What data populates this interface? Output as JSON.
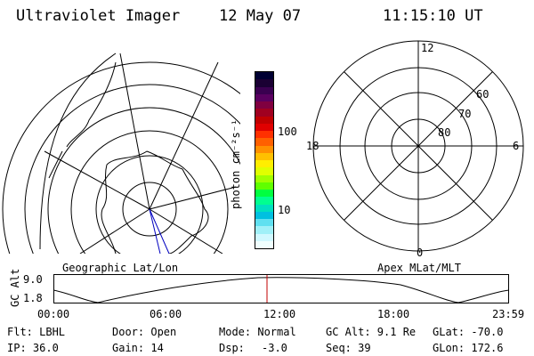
{
  "header": {
    "title": "Ultraviolet Imager",
    "date": "12 May 07",
    "time": "11:15:10 UT"
  },
  "geo_map": {
    "label": "Geographic Lat/Lon"
  },
  "colorbar": {
    "unit_label": "photon cm⁻²s⁻¹",
    "ticks": [
      "100",
      "10"
    ],
    "colors": [
      "#000033",
      "#1a0033",
      "#3a0050",
      "#5a0060",
      "#800040",
      "#a00020",
      "#c00000",
      "#e00000",
      "#ff3000",
      "#ff6000",
      "#ff9000",
      "#ffc000",
      "#ffee00",
      "#e0ff00",
      "#a0ff00",
      "#60ff00",
      "#00ff40",
      "#00ff90",
      "#00e0c0",
      "#00c0e0",
      "#60e0f0",
      "#a0f0f8",
      "#d0f8ff",
      "#f0ffff"
    ]
  },
  "polar": {
    "label": "Apex MLat/MLT",
    "mlt_labels": {
      "top": "12",
      "left": "18",
      "right": "6",
      "bottom": "0"
    },
    "lat_labels": [
      "60",
      "70",
      "80"
    ]
  },
  "timeline": {
    "y_label": "GC Alt",
    "y_ticks": [
      "9.0",
      "1.8"
    ],
    "x_ticks": [
      "00:00",
      "06:00",
      "12:00",
      "18:00",
      "23:59"
    ],
    "current_time": "11:15"
  },
  "info": {
    "flt": "Flt: LBHL",
    "door": "Door: Open",
    "mode": "Mode: Normal",
    "gc_alt": "GC Alt: 9.1 Re",
    "glat": "GLat: -70.0",
    "ip": "IP: 36.0",
    "gain": "Gain: 14",
    "dsp_label": "Dsp:",
    "dsp_value": "-3.0",
    "seq": "Seq: 39",
    "glon": "GLon: 172.6"
  }
}
